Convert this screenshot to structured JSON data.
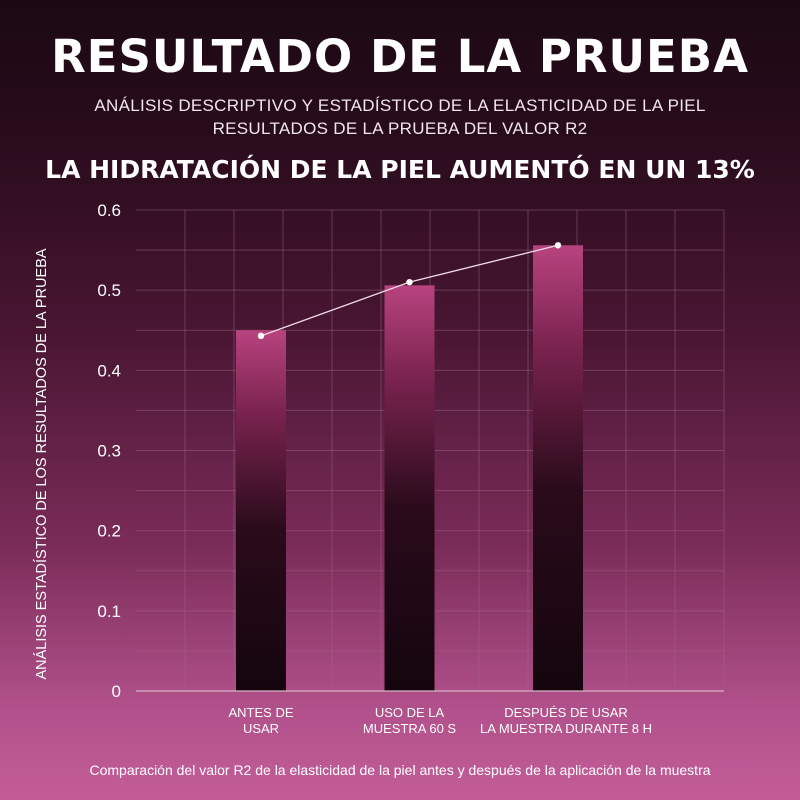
{
  "header": {
    "title": "RESULTADO DE LA PRUEBA",
    "subtitle_line1": "ANÁLISIS DESCRIPTIVO Y ESTADÍSTICO DE LA ELASTICIDAD DE LA PIEL",
    "subtitle_line2": "RESULTADOS DE LA PRUEBA DEL VALOR R2",
    "headline": "LA HIDRATACIÓN DE LA PIEL AUMENTÓ EN UN 13%"
  },
  "footer": {
    "caption": "Comparación del valor R2 de la elasticidad de la piel antes y después de la aplicación de la muestra"
  },
  "chart_data": {
    "type": "bar",
    "categories": [
      [
        "ANTES DE",
        "USAR"
      ],
      [
        "USO DE LA",
        "MUESTRA 60 S"
      ],
      [
        "DESPUÉS DE USAR",
        "LA MUESTRA DURANTE 8 H"
      ]
    ],
    "values": [
      0.45,
      0.506,
      0.556
    ],
    "line_overlay": [
      0.443,
      0.51,
      0.556
    ],
    "ylabel": "ANÁLISIS ESTADÍSTICO DE LOS RESULTADOS DE LA PRUEBA",
    "yticks": [
      "0",
      "0.1",
      "0.2",
      "0.3",
      "0.4",
      "0.5",
      "0.6"
    ],
    "ylim": [
      0,
      0.6
    ],
    "grid": true,
    "colors": {
      "bar_top": "#b8437f",
      "bar_mid": "#7c2450",
      "bar_bottom": "#14050d",
      "line": "#f3dbe8",
      "grid": "#9c6a88"
    }
  }
}
